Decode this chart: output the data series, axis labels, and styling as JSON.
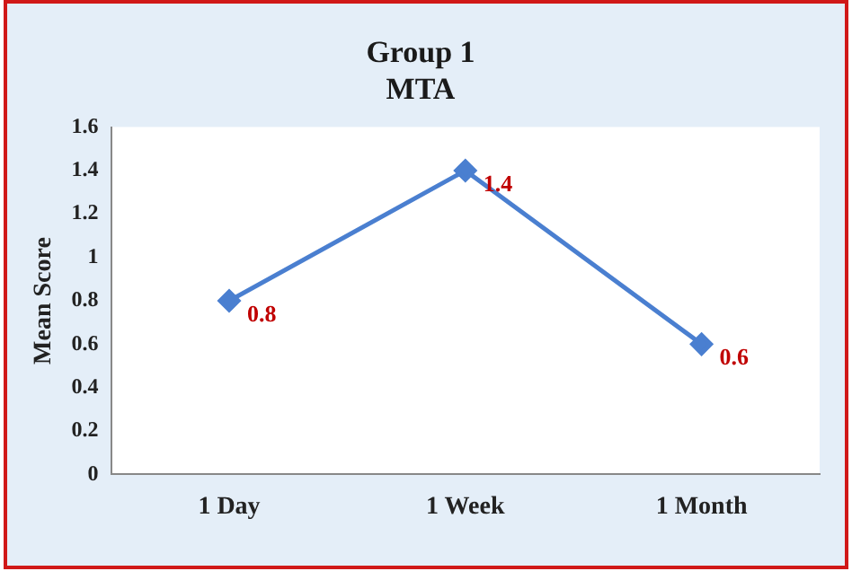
{
  "chart_data": {
    "type": "line",
    "title": "Group 1\nMTA",
    "ylabel": "Mean Score",
    "categories": [
      "1 Day",
      "1 Week",
      "1 Month"
    ],
    "series": [
      {
        "color": "#4a7fd0",
        "values": [
          0.8,
          1.4,
          0.6
        ]
      }
    ],
    "ylim": [
      0,
      1.6
    ],
    "yticks": [
      0,
      0.2,
      0.4,
      0.6,
      0.8,
      1,
      1.2,
      1.4,
      1.6
    ],
    "grid": false,
    "legend": false,
    "marker": "diamond",
    "line_style": "solid",
    "data_labels": true
  }
}
